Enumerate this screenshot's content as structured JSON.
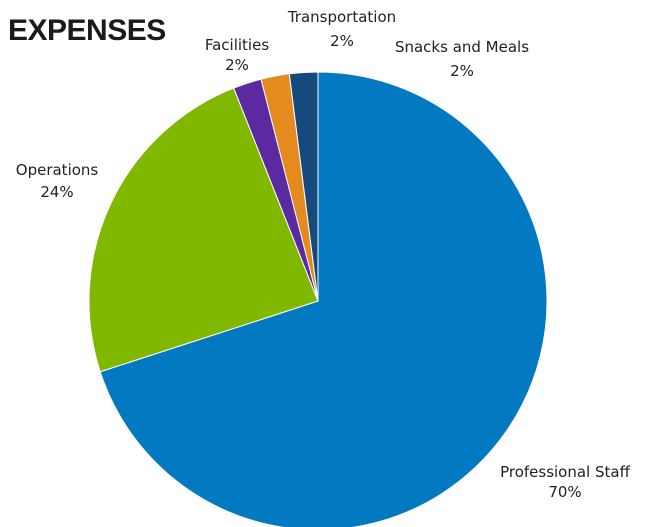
{
  "chart_data": {
    "type": "pie",
    "title": "EXPENSES",
    "start_angle_deg": 0,
    "direction": "clockwise",
    "slices": [
      {
        "label": "Professional Staff",
        "percent_label": "70%",
        "value": 70,
        "color": "#0279c0"
      },
      {
        "label": "Operations",
        "percent_label": "24%",
        "value": 24,
        "color": "#80b800"
      },
      {
        "label": "Facilities",
        "percent_label": "2%",
        "value": 2,
        "color": "#5b2aa0"
      },
      {
        "label": "Transportation",
        "percent_label": "2%",
        "value": 2,
        "color": "#e58a1f"
      },
      {
        "label": "Snacks and Meals",
        "percent_label": "2%",
        "value": 2,
        "color": "#174a7c"
      }
    ]
  }
}
